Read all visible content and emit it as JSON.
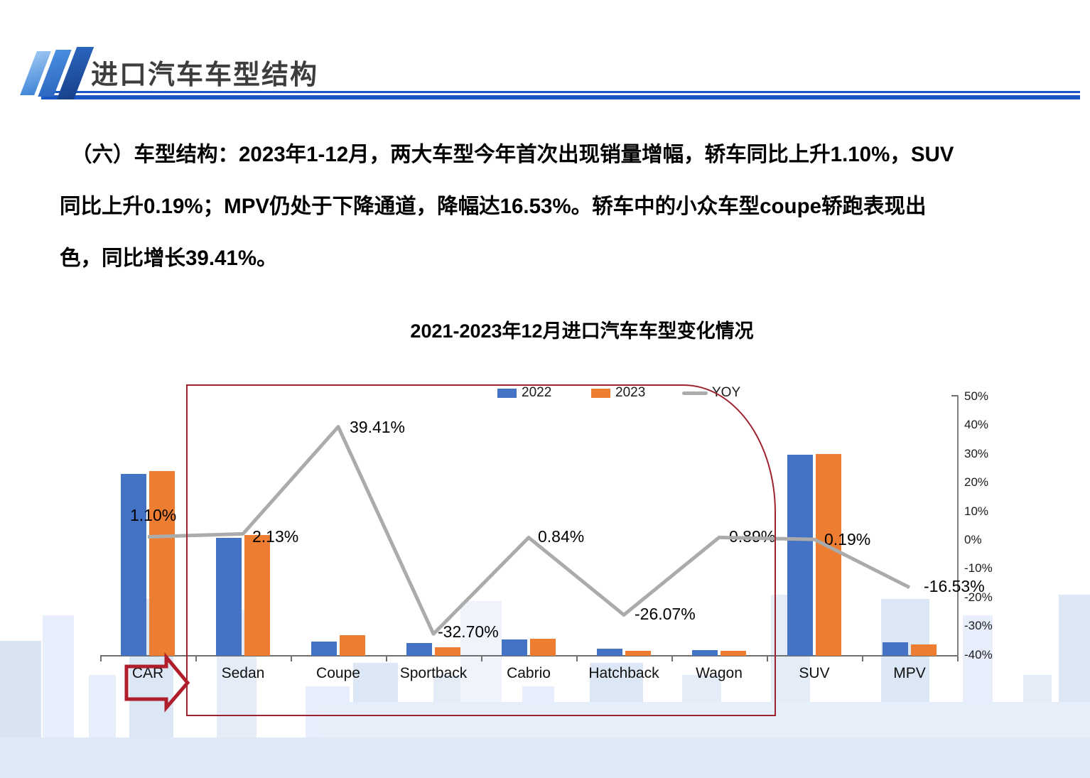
{
  "header": {
    "title": "进口汽车车型结构"
  },
  "paragraph": {
    "lines": [
      "（六）车型结构：2023年1-12月，两大车型今年首次出现销量增幅，轿车同比上升1.10%，SUV",
      "同比上升0.19%；MPV仍处于下降通道，降幅达16.53%。轿车中的小众车型coupe轿跑表现出",
      "色，同比增长39.41%。"
    ]
  },
  "chart_data": {
    "type": "bar",
    "title": "2021-2023年12月进口汽车车型变化情况",
    "categories": [
      "CAR",
      "Sedan",
      "Coupe",
      "Sportback",
      "Cabrio",
      "Hatchback",
      "Wagon",
      "SUV",
      "MPV"
    ],
    "legend": [
      "2022",
      "2023",
      "YOY"
    ],
    "series": [
      {
        "name": "2022",
        "type": "bar",
        "color": "#4472C4",
        "values": [
          90,
          58.5,
          7,
          6.3,
          8.1,
          3.5,
          2.8,
          99.6,
          6.7
        ]
      },
      {
        "name": "2023",
        "type": "bar",
        "color": "#ED7D31",
        "values": [
          91.5,
          60,
          10.2,
          4.2,
          8.5,
          2.5,
          2.5,
          100,
          5.6
        ]
      },
      {
        "name": "YOY",
        "type": "line",
        "color": "#ABABAB",
        "values": [
          1.1,
          2.13,
          39.41,
          -32.7,
          0.84,
          -26.07,
          0.89,
          0.19,
          -16.53
        ],
        "labels": [
          "1.10%",
          "2.13%",
          "39.41%",
          "-32.70%",
          "0.84%",
          "-26.07%",
          "0.89%",
          "0.19%",
          "-16.53%"
        ]
      }
    ],
    "left_axis": {
      "visible": false,
      "note": "bar axis unlabeled; bar values are relative heights, SUV 2023 = 100"
    },
    "right_axis": {
      "min": -40,
      "max": 50,
      "ticks": [
        "50%",
        "40%",
        "30%",
        "20%",
        "10%",
        "0%",
        "-10%",
        "-20%",
        "-30%",
        "-40%"
      ]
    },
    "legend_position": "top",
    "grid": false,
    "colors": {
      "bar2022": "#4472C4",
      "bar2023": "#ED7D31",
      "yoyLine": "#ABABAB",
      "highlight": "#9f2231",
      "accentBlue": "#1a57c4"
    }
  }
}
